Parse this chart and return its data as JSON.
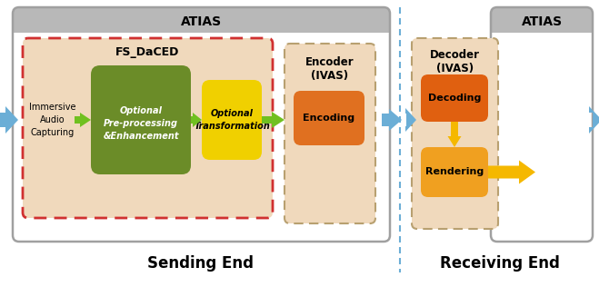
{
  "fig_width": 6.59,
  "fig_height": 3.16,
  "bg_color": "#ffffff",
  "colors": {
    "light_tan": "#f0d9bc",
    "olive_green": "#6b8c28",
    "yellow_transform": "#f0d000",
    "orange_encoding": "#e07020",
    "orange_decoding": "#e06010",
    "orange_rendering": "#f0a020",
    "yellow_arrow": "#f5b800",
    "blue_arrow": "#6baed6",
    "green_arrow": "#70c020",
    "gray_header": "#b8b8b8",
    "gray_border": "#a0a0a0",
    "white": "#ffffff",
    "red_dashed": "#d03030",
    "tan_dashed_border": "#b8a070",
    "black": "#000000"
  },
  "atias_left_label": "ATIAS",
  "atias_right_label": "ATIAS",
  "fs_daced_label": "FS_DaCED",
  "encoder_label": "Encoder\n(IVAS)",
  "decoder_label": "Decoder\n(IVAS)",
  "immersive_text": "Immersive\nAudio\nCapturing",
  "preproc_text": "Optional\nPre-processing\n&Enhancement",
  "transform_text": "Optional\nTransformation",
  "encoding_text": "Encoding",
  "decoding_text": "Decoding",
  "rendering_text": "Rendering",
  "sending_end_label": "Sending End",
  "receiving_end_label": "Receiving End"
}
